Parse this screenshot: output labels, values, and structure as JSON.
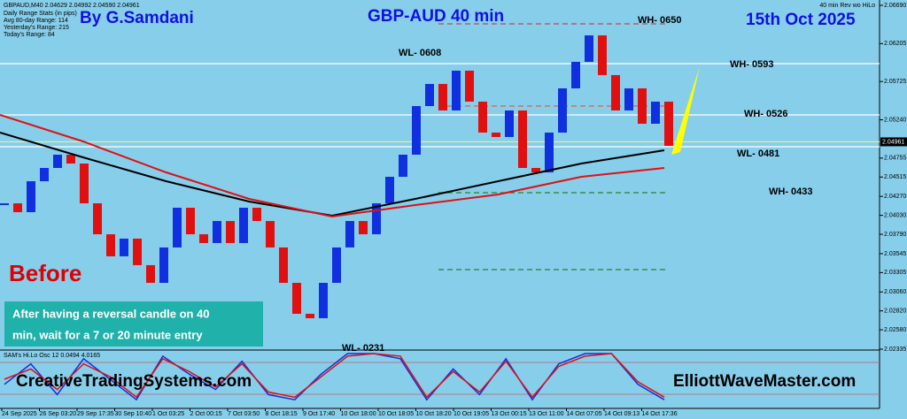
{
  "chart_data": {
    "type": "candlestick",
    "title": "GBP-AUD 40 min",
    "author": "By G.Samdani",
    "date": "15th Oct 2025",
    "symbol_info": "GBPAUD,M40 2.04629 2.04992 2.04590 2.04961",
    "stats": [
      "Daily Range Stats (in pips)",
      "Avg 80-day Range: 114",
      "Yesterday's Range: 215",
      "Today's Range: 84"
    ],
    "indicator_name": "40 min Rev wo HiLo",
    "annotation_before": "Before",
    "note_lines": [
      "After having a reversal candle on 40",
      "min, wait for a 7 or 20 minute entry"
    ],
    "watermark_left": "CreativeTradingSystems.com",
    "watermark_right": "ElliottWaveMaster.com",
    "level_labels": [
      "WL- 0608",
      "WH- 0650",
      "WH- 0593",
      "WH- 0526",
      "WL- 0481",
      "WH- 0433",
      "WL- 0231"
    ],
    "ylim": [
      2.02335,
      2.0669
    ],
    "yticks": [
      {
        "value": 2.0669,
        "label": "2.06690"
      },
      {
        "value": 2.06205,
        "label": "2.06205"
      },
      {
        "value": 2.05725,
        "label": "2.05725"
      },
      {
        "value": 2.0524,
        "label": "2.05240"
      },
      {
        "value": 2.04755,
        "label": "2.04755"
      },
      {
        "value": 2.04515,
        "label": "2.04515"
      },
      {
        "value": 2.0427,
        "label": "2.04270"
      },
      {
        "value": 2.0403,
        "label": "2.04030"
      },
      {
        "value": 2.0379,
        "label": "2.03790"
      },
      {
        "value": 2.03545,
        "label": "2.03545"
      },
      {
        "value": 2.03305,
        "label": "2.03305"
      },
      {
        "value": 2.0306,
        "label": "2.03060"
      },
      {
        "value": 2.0282,
        "label": "2.02820"
      },
      {
        "value": 2.0258,
        "label": "2.02580"
      },
      {
        "value": 2.02335,
        "label": "2.02335"
      }
    ],
    "current_price": {
      "value": 2.04961,
      "label": "2.04961"
    },
    "x_labels": [
      "24 Sep 2025",
      "26 Sep 03:20",
      "29 Sep 17:35",
      "30 Sep 10:40",
      "1 Oct 03:25",
      "2 Oct 00:15",
      "7 Oct 03:50",
      "8 Oct 18:15",
      "9 Oct 17:40",
      "10 Oct 18:00",
      "10 Oct 18:05",
      "10 Oct 18:20",
      "10 Oct 19:05",
      "13 Oct 00:15",
      "13 Oct 11:00",
      "14 Oct 07:05",
      "14 Oct 09:13",
      "14 Oct 17:36"
    ],
    "up_color": "#1030e0",
    "down_color": "#e01010",
    "closes": [
      2.04182,
      2.0407,
      2.04462,
      2.0463,
      2.04798,
      2.04686,
      2.04182,
      2.0379,
      2.03511,
      2.03735,
      2.03399,
      2.03175,
      2.03623,
      2.04126,
      2.0379,
      2.03679,
      2.03958,
      2.03679,
      2.04126,
      2.03958,
      2.03623,
      2.03175,
      2.02783,
      2.02727,
      2.03175,
      2.03623,
      2.03958,
      2.0379,
      2.04182,
      2.04518,
      2.04798,
      2.05414,
      2.05694,
      2.05358,
      2.05862,
      2.0547,
      2.05078,
      2.05022,
      2.05358,
      2.0463,
      2.04574,
      2.05078,
      2.05638,
      2.05974,
      2.06309,
      2.05806,
      2.05358,
      2.05638,
      2.0519,
      2.0547,
      2.0491
    ],
    "series": [
      {
        "name": "MA black",
        "color": "#000000",
        "values": [
          2.05078,
          2.04764,
          2.04462,
          2.04205,
          2.04026,
          2.04238,
          2.04462,
          2.04686,
          2.04854
        ]
      },
      {
        "name": "MA red",
        "color": "#e01010",
        "values": [
          2.05302,
          2.04966,
          2.04574,
          2.04238,
          2.04014,
          2.0416,
          2.04294,
          2.04518,
          2.0463
        ]
      }
    ],
    "levels": [
      {
        "value": 2.06455,
        "color": "#b05050",
        "dashed": true
      },
      {
        "value": 2.05951,
        "color": "#ffffff",
        "dashed": false
      },
      {
        "value": 2.05414,
        "color": "#e06040",
        "dashed": true
      },
      {
        "value": 2.05302,
        "color": "#ffffff",
        "dashed": false
      },
      {
        "value": 2.04961,
        "color": "#f0f080",
        "dashed": false
      },
      {
        "value": 2.04899,
        "color": "#ffffff",
        "dashed": false
      },
      {
        "value": 2.04317,
        "color": "#2e7d32",
        "dashed": true
      },
      {
        "value": 2.03343,
        "color": "#2e7d32",
        "dashed": true
      }
    ],
    "oscillator": {
      "label": "SAM's Hi.Lo Osc 12 0.0494 4.0165",
      "ylim": [
        0,
        100
      ],
      "series": [
        {
          "name": "osc blue",
          "color": "#1030e0",
          "values": [
            40,
            80,
            20,
            90,
            50,
            10,
            95,
            60,
            30,
            85,
            20,
            10,
            60,
            100,
            100,
            90,
            10,
            70,
            20,
            90,
            10,
            80,
            100,
            100,
            40,
            10
          ]
        },
        {
          "name": "osc red",
          "color": "#e01010",
          "values": [
            50,
            70,
            30,
            80,
            55,
            15,
            90,
            65,
            35,
            80,
            25,
            15,
            55,
            95,
            100,
            95,
            15,
            65,
            25,
            85,
            15,
            75,
            95,
            100,
            45,
            15
          ]
        }
      ]
    }
  }
}
